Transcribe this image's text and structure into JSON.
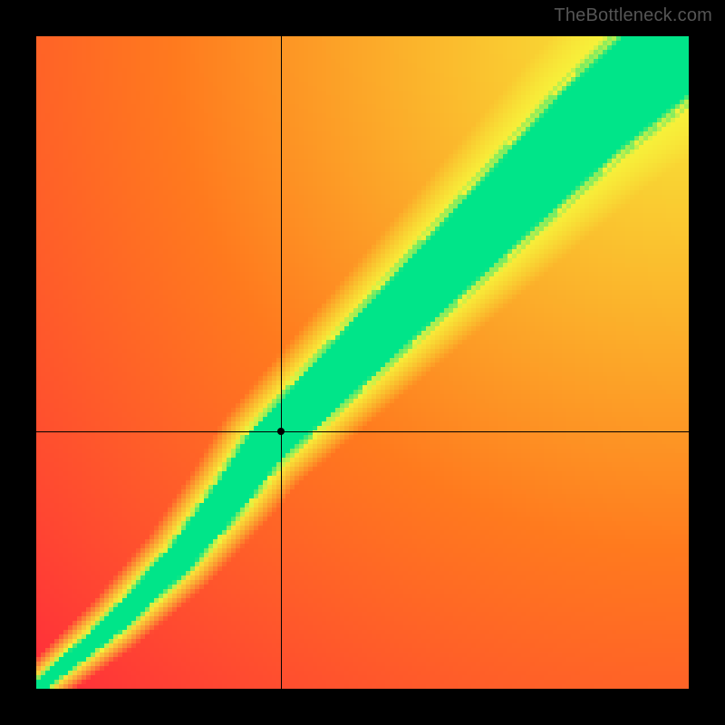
{
  "watermark": {
    "text": "TheBottleneck.com",
    "color": "#555555",
    "fontsize": 20
  },
  "frame": {
    "outer_size": 800,
    "border_color": "#000000",
    "border_thickness": 40,
    "plot_size": 720
  },
  "heatmap": {
    "type": "heatmap",
    "resolution": 144,
    "xlim": [
      0,
      1
    ],
    "ylim": [
      0,
      1
    ],
    "colors": {
      "red": "#ff2a3c",
      "orange": "#ff7a1e",
      "yellow": "#f7f23a",
      "green": "#00e589"
    },
    "ridge": {
      "comment": "green ridge centerline as (x,y) pairs in [0,1] plot coords; y is measured from top",
      "points": [
        [
          0.0,
          1.0
        ],
        [
          0.12,
          0.9
        ],
        [
          0.22,
          0.8
        ],
        [
          0.3,
          0.7
        ],
        [
          0.35,
          0.63
        ],
        [
          0.4,
          0.58
        ],
        [
          0.5,
          0.48
        ],
        [
          0.6,
          0.38
        ],
        [
          0.72,
          0.26
        ],
        [
          0.85,
          0.13
        ],
        [
          1.0,
          0.0
        ]
      ],
      "green_halfwidth_start": 0.01,
      "green_halfwidth_end": 0.08,
      "yellow_halfwidth_start": 0.035,
      "yellow_halfwidth_end": 0.15
    },
    "background_gradient": {
      "comment": "distance from top-right corner drives red→yellow gradient",
      "corner": [
        1.0,
        0.0
      ]
    }
  },
  "crosshair": {
    "x": 0.375,
    "y_from_top": 0.605,
    "line_color": "#000000",
    "line_width": 1,
    "marker_color": "#000000",
    "marker_diameter": 8
  }
}
